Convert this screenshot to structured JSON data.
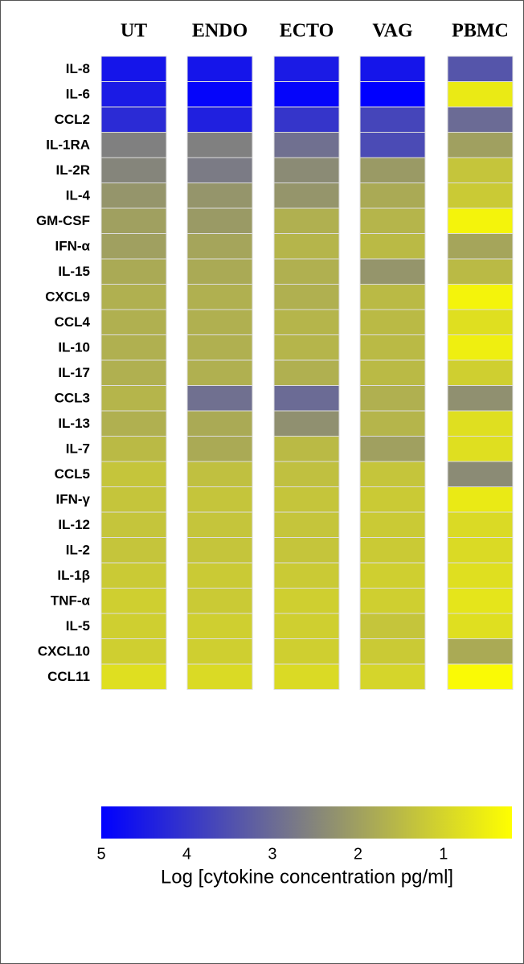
{
  "chart_data": {
    "type": "heatmap",
    "x_categories": [
      "UT",
      "ENDO",
      "ECTO",
      "VAG",
      "PBMC"
    ],
    "y_categories": [
      "IL-8",
      "IL-6",
      "CCL2",
      "IL-1RA",
      "IL-2R",
      "IL-4",
      "GM-CSF",
      "IFN-α",
      "IL-15",
      "CXCL9",
      "CCL4",
      "IL-10",
      "IL-17",
      "CCL3",
      "IL-13",
      "IL-7",
      "CCL5",
      "IFN-γ",
      "IL-12",
      "IL-2",
      "IL-1β",
      "TNF-α",
      "IL-5",
      "CXCL10",
      "CCL11"
    ],
    "values": [
      [
        4.6,
        4.6,
        4.5,
        4.6,
        3.4
      ],
      [
        4.5,
        4.9,
        4.9,
        5.0,
        0.6
      ],
      [
        4.2,
        4.4,
        4.0,
        3.7,
        3.0
      ],
      [
        2.6,
        2.6,
        2.9,
        3.6,
        2.0
      ],
      [
        2.5,
        2.7,
        2.4,
        2.1,
        1.3
      ],
      [
        2.2,
        2.2,
        2.2,
        1.8,
        1.2
      ],
      [
        2.0,
        2.1,
        1.7,
        1.6,
        0.4
      ],
      [
        2.0,
        1.9,
        1.6,
        1.5,
        1.9
      ],
      [
        1.8,
        1.8,
        1.7,
        2.2,
        1.5
      ],
      [
        1.7,
        1.7,
        1.7,
        1.5,
        0.4
      ],
      [
        1.7,
        1.7,
        1.6,
        1.5,
        0.8
      ],
      [
        1.7,
        1.7,
        1.6,
        1.5,
        0.5
      ],
      [
        1.7,
        1.7,
        1.7,
        1.5,
        1.1
      ],
      [
        1.6,
        2.9,
        3.0,
        1.7,
        2.3
      ],
      [
        1.7,
        1.8,
        2.3,
        1.6,
        0.8
      ],
      [
        1.5,
        1.8,
        1.5,
        2.0,
        0.8
      ],
      [
        1.3,
        1.4,
        1.4,
        1.3,
        2.4
      ],
      [
        1.3,
        1.3,
        1.3,
        1.2,
        0.6
      ],
      [
        1.3,
        1.3,
        1.3,
        1.2,
        0.9
      ],
      [
        1.3,
        1.3,
        1.3,
        1.2,
        0.9
      ],
      [
        1.2,
        1.2,
        1.2,
        1.1,
        0.8
      ],
      [
        1.1,
        1.2,
        1.1,
        1.1,
        0.7
      ],
      [
        1.1,
        1.1,
        1.1,
        1.3,
        0.8
      ],
      [
        1.1,
        1.1,
        1.1,
        1.2,
        1.8
      ],
      [
        0.8,
        0.9,
        0.9,
        1.0,
        0.3
      ]
    ],
    "colorscale": [
      "#0000ff",
      "#808080",
      "#ffff00"
    ],
    "clim": [
      5,
      0.2
    ],
    "cticks": [
      5,
      4,
      3,
      2,
      1
    ],
    "colorbar_label": "Log [cytokine concentration pg/ml]"
  }
}
